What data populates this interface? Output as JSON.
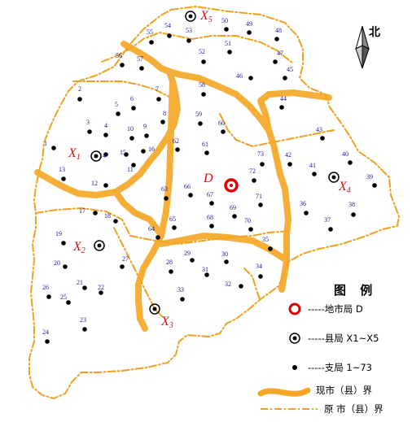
{
  "north_label": "北",
  "city": {
    "label": "D",
    "color": "#e00000"
  },
  "counties": [
    {
      "id": "X1",
      "label": "X1"
    },
    {
      "id": "X2",
      "label": "X2"
    },
    {
      "id": "X3",
      "label": "X3"
    },
    {
      "id": "X4",
      "label": "X4"
    },
    {
      "id": "X5",
      "label": "X5"
    }
  ],
  "branches": [
    "1",
    "2",
    "3",
    "4",
    "5",
    "6",
    "7",
    "8",
    "9",
    "10",
    "11",
    "12",
    "13",
    "14",
    "15",
    "16",
    "17",
    "18",
    "19",
    "20",
    "21",
    "22",
    "23",
    "24",
    "25",
    "26",
    "27",
    "28",
    "29",
    "30",
    "31",
    "32",
    "33",
    "34",
    "35",
    "36",
    "37",
    "38",
    "39",
    "40",
    "41",
    "42",
    "43",
    "44",
    "45",
    "46",
    "47",
    "48",
    "49",
    "50",
    "51",
    "52",
    "53",
    "54",
    "55",
    "56",
    "57",
    "58",
    "59",
    "60",
    "61",
    "62",
    "63",
    "64",
    "65",
    "66",
    "67",
    "68",
    "69",
    "70",
    "71",
    "72",
    "73"
  ],
  "legend": {
    "title": "图  例",
    "city_label": "-----地市局 D",
    "county_label": "-----县局 X1~X5",
    "branch_label": "-----支局 1~73",
    "current_boundary_label": "现市（县）界",
    "original_boundary_label": "原 市（县）界"
  },
  "colors": {
    "current_boundary": "#f5a623",
    "original_boundary": "#f0a020",
    "branch_dot": "#000000",
    "branch_number": "#1a1a8c",
    "county_label": "#d01010"
  }
}
